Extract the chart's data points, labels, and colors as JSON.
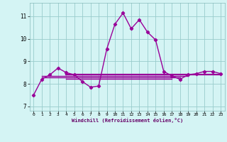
{
  "xlabel": "Windchill (Refroidissement éolien,°C)",
  "ylabel": "",
  "bg_color": "#d4f4f4",
  "line_color": "#990099",
  "grid_color": "#99cccc",
  "x_values": [
    0,
    1,
    2,
    3,
    4,
    5,
    6,
    7,
    8,
    9,
    10,
    11,
    12,
    13,
    14,
    15,
    16,
    17,
    18,
    19,
    20,
    21,
    22,
    23
  ],
  "y_main": [
    7.5,
    8.2,
    8.4,
    8.7,
    8.5,
    8.4,
    8.1,
    7.85,
    7.9,
    9.55,
    10.65,
    11.15,
    10.45,
    10.85,
    10.3,
    9.95,
    8.55,
    8.35,
    8.2,
    8.4,
    8.45,
    8.55,
    8.55,
    8.45
  ],
  "hline1_y": 8.35,
  "hline1_xstart": 1,
  "hline1_xend": 19,
  "hline2_y": 8.28,
  "hline2_xstart": 1,
  "hline2_xend": 18,
  "hline3_y": 8.42,
  "hline3_xstart": 4,
  "hline3_xend": 23,
  "hline4_y": 8.22,
  "hline4_xstart": 4,
  "hline4_xend": 17,
  "ylim": [
    6.8,
    11.6
  ],
  "yticks": [
    7,
    8,
    9,
    10,
    11
  ],
  "xticks": [
    0,
    1,
    2,
    3,
    4,
    5,
    6,
    7,
    8,
    9,
    10,
    11,
    12,
    13,
    14,
    15,
    16,
    17,
    18,
    19,
    20,
    21,
    22,
    23
  ]
}
